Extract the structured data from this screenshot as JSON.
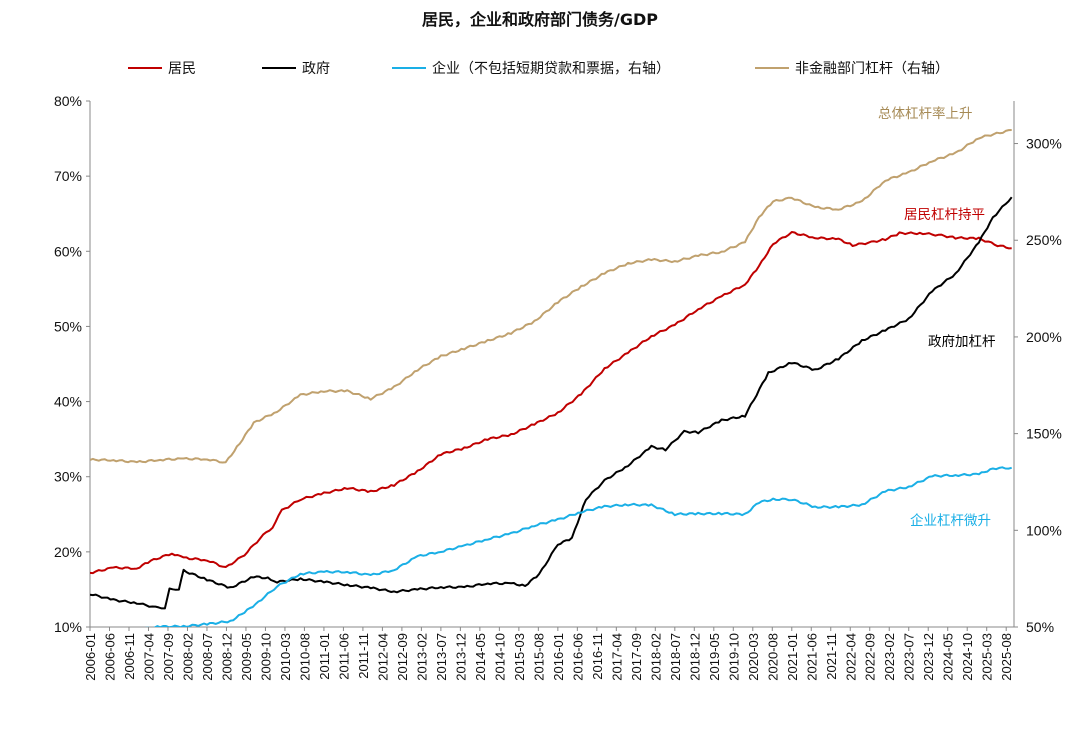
{
  "chart_data": {
    "type": "line",
    "title": "居民，企业和政府部门债务/GDP",
    "x_tick_labels": [
      "2006-01",
      "2006-06",
      "2006-11",
      "2007-04",
      "2007-09",
      "2008-02",
      "2008-07",
      "2008-12",
      "2009-05",
      "2009-10",
      "2010-03",
      "2010-08",
      "2011-01",
      "2011-06",
      "2011-11",
      "2012-04",
      "2012-09",
      "2013-02",
      "2013-07",
      "2013-12",
      "2014-05",
      "2014-10",
      "2015-03",
      "2015-08",
      "2016-01",
      "2016-06",
      "2016-11",
      "2017-04",
      "2017-09",
      "2018-02",
      "2018-07",
      "2018-12",
      "2019-05",
      "2019-10",
      "2020-03",
      "2020-08",
      "2021-01",
      "2021-06",
      "2021-11",
      "2022-04",
      "2022-09",
      "2023-02",
      "2023-07",
      "2023-12",
      "2024-05",
      "2024-10",
      "2025-03",
      "2025-08"
    ],
    "y_left": {
      "min": 10,
      "max": 80,
      "ticks": [
        "10%",
        "20%",
        "30%",
        "40%",
        "50%",
        "60%",
        "70%",
        "80%"
      ]
    },
    "y_right": {
      "min": 50,
      "max": 322,
      "ticks": [
        "50%",
        "100%",
        "150%",
        "200%",
        "250%",
        "300%"
      ]
    },
    "grid": false,
    "legend_position": "top",
    "series": [
      {
        "name": "居民",
        "axis": "left",
        "color": "#C00000",
        "points": [
          [
            2006.0,
            17.2
          ],
          [
            2006.5,
            17.9
          ],
          [
            2007.0,
            17.8
          ],
          [
            2007.3,
            18.8
          ],
          [
            2007.75,
            19.8
          ],
          [
            2008.0,
            19.2
          ],
          [
            2008.5,
            18.9
          ],
          [
            2008.9,
            17.9
          ],
          [
            2009.3,
            19.6
          ],
          [
            2009.7,
            22.2
          ],
          [
            2009.9,
            23.3
          ],
          [
            2010.1,
            25.5
          ],
          [
            2010.5,
            27.0
          ],
          [
            2011.0,
            27.8
          ],
          [
            2011.5,
            28.5
          ],
          [
            2012.0,
            28.0
          ],
          [
            2012.5,
            28.9
          ],
          [
            2013.0,
            30.7
          ],
          [
            2013.5,
            33.0
          ],
          [
            2014.0,
            33.8
          ],
          [
            2014.5,
            35.0
          ],
          [
            2015.0,
            35.6
          ],
          [
            2015.5,
            37.0
          ],
          [
            2016.0,
            38.5
          ],
          [
            2016.5,
            41.0
          ],
          [
            2017.0,
            44.4
          ],
          [
            2017.5,
            46.5
          ],
          [
            2018.0,
            48.7
          ],
          [
            2018.5,
            50.2
          ],
          [
            2019.0,
            52.3
          ],
          [
            2019.5,
            54.0
          ],
          [
            2020.0,
            55.6
          ],
          [
            2020.3,
            58.0
          ],
          [
            2020.6,
            61.0
          ],
          [
            2021.0,
            62.5
          ],
          [
            2021.5,
            61.8
          ],
          [
            2022.0,
            61.6
          ],
          [
            2022.3,
            60.8
          ],
          [
            2022.7,
            61.2
          ],
          [
            2023.0,
            61.6
          ],
          [
            2023.3,
            62.4
          ],
          [
            2023.8,
            62.4
          ],
          [
            2024.2,
            62.1
          ],
          [
            2024.5,
            61.8
          ],
          [
            2025.0,
            61.7
          ],
          [
            2025.4,
            60.8
          ],
          [
            2025.7,
            60.4
          ]
        ]
      },
      {
        "name": "政府",
        "axis": "left",
        "color": "#000000",
        "points": [
          [
            2006.0,
            14.4
          ],
          [
            2006.5,
            13.6
          ],
          [
            2007.0,
            13.2
          ],
          [
            2007.4,
            12.6
          ],
          [
            2007.6,
            12.6
          ],
          [
            2007.7,
            15.0
          ],
          [
            2007.9,
            15.1
          ],
          [
            2008.0,
            17.5
          ],
          [
            2008.5,
            16.3
          ],
          [
            2009.0,
            15.2
          ],
          [
            2009.5,
            16.7
          ],
          [
            2009.8,
            16.5
          ],
          [
            2010.0,
            16.0
          ],
          [
            2010.5,
            16.4
          ],
          [
            2011.0,
            16.0
          ],
          [
            2011.5,
            15.6
          ],
          [
            2012.0,
            15.2
          ],
          [
            2012.5,
            14.7
          ],
          [
            2013.0,
            15.0
          ],
          [
            2013.5,
            15.3
          ],
          [
            2014.0,
            15.3
          ],
          [
            2014.5,
            15.8
          ],
          [
            2015.0,
            15.8
          ],
          [
            2015.3,
            15.5
          ],
          [
            2015.6,
            17.0
          ],
          [
            2016.0,
            21.0
          ],
          [
            2016.3,
            21.8
          ],
          [
            2016.6,
            27.0
          ],
          [
            2017.0,
            29.5
          ],
          [
            2017.5,
            31.5
          ],
          [
            2018.0,
            34.0
          ],
          [
            2018.3,
            33.6
          ],
          [
            2018.7,
            36.0
          ],
          [
            2019.0,
            35.9
          ],
          [
            2019.5,
            37.5
          ],
          [
            2020.0,
            38.1
          ],
          [
            2020.5,
            43.8
          ],
          [
            2021.0,
            45.2
          ],
          [
            2021.5,
            44.2
          ],
          [
            2022.0,
            45.7
          ],
          [
            2022.5,
            48.1
          ],
          [
            2023.0,
            49.5
          ],
          [
            2023.5,
            51.0
          ],
          [
            2024.0,
            54.7
          ],
          [
            2024.5,
            57.0
          ],
          [
            2025.0,
            61.2
          ],
          [
            2025.3,
            64.5
          ],
          [
            2025.7,
            67.2
          ]
        ]
      },
      {
        "name": "企业（不包括短期贷款和票据，右轴）",
        "axis": "right",
        "color": "#1AAFE6",
        "points": [
          [
            2006.0,
            45.0
          ],
          [
            2007.0,
            48.5
          ],
          [
            2007.5,
            50.2
          ],
          [
            2008.0,
            50.3
          ],
          [
            2008.5,
            51.5
          ],
          [
            2009.0,
            53.0
          ],
          [
            2009.3,
            57.5
          ],
          [
            2009.6,
            63.0
          ],
          [
            2010.0,
            71.0
          ],
          [
            2010.5,
            77.5
          ],
          [
            2011.0,
            78.5
          ],
          [
            2011.5,
            78.5
          ],
          [
            2012.0,
            76.8
          ],
          [
            2012.5,
            79.5
          ],
          [
            2013.0,
            86.5
          ],
          [
            2013.5,
            89.0
          ],
          [
            2014.0,
            92.0
          ],
          [
            2014.5,
            95.5
          ],
          [
            2015.0,
            98.3
          ],
          [
            2015.5,
            102.5
          ],
          [
            2016.0,
            105.5
          ],
          [
            2016.5,
            109.5
          ],
          [
            2017.0,
            112.3
          ],
          [
            2017.5,
            113.3
          ],
          [
            2018.0,
            113.0
          ],
          [
            2018.5,
            108.3
          ],
          [
            2019.0,
            108.6
          ],
          [
            2019.5,
            108.7
          ],
          [
            2020.0,
            108.2
          ],
          [
            2020.3,
            114.5
          ],
          [
            2020.6,
            116.0
          ],
          [
            2021.0,
            116.0
          ],
          [
            2021.5,
            112.0
          ],
          [
            2022.0,
            112.1
          ],
          [
            2022.5,
            113.2
          ],
          [
            2023.0,
            120.2
          ],
          [
            2023.5,
            122.5
          ],
          [
            2024.0,
            128.0
          ],
          [
            2024.5,
            128.5
          ],
          [
            2025.0,
            129.0
          ],
          [
            2025.3,
            132.0
          ],
          [
            2025.7,
            132.3
          ]
        ]
      },
      {
        "name": "非金融部门杠杆（右轴）",
        "axis": "right",
        "color": "#C0A16E",
        "points": [
          [
            2006.0,
            136.5
          ],
          [
            2006.5,
            136.3
          ],
          [
            2007.0,
            135.2
          ],
          [
            2007.5,
            136.5
          ],
          [
            2008.0,
            137.0
          ],
          [
            2008.5,
            136.8
          ],
          [
            2008.9,
            135.0
          ],
          [
            2009.2,
            145.0
          ],
          [
            2009.5,
            155.5
          ],
          [
            2010.0,
            161.5
          ],
          [
            2010.5,
            170.0
          ],
          [
            2011.0,
            172.0
          ],
          [
            2011.5,
            172.0
          ],
          [
            2012.0,
            168.0
          ],
          [
            2012.5,
            174.0
          ],
          [
            2013.0,
            183.0
          ],
          [
            2013.5,
            190.0
          ],
          [
            2014.0,
            194.0
          ],
          [
            2014.5,
            198.0
          ],
          [
            2015.0,
            202.0
          ],
          [
            2015.5,
            208.0
          ],
          [
            2016.0,
            218.0
          ],
          [
            2016.5,
            226.0
          ],
          [
            2017.0,
            233.0
          ],
          [
            2017.5,
            238.0
          ],
          [
            2018.0,
            240.0
          ],
          [
            2018.5,
            239.0
          ],
          [
            2019.0,
            242.0
          ],
          [
            2019.5,
            244.0
          ],
          [
            2020.0,
            249.0
          ],
          [
            2020.3,
            262.0
          ],
          [
            2020.6,
            270.0
          ],
          [
            2021.0,
            272.0
          ],
          [
            2021.5,
            267.0
          ],
          [
            2022.0,
            266.0
          ],
          [
            2022.5,
            270.0
          ],
          [
            2023.0,
            281.0
          ],
          [
            2023.5,
            285.0
          ],
          [
            2024.0,
            291.0
          ],
          [
            2024.5,
            295.0
          ],
          [
            2025.0,
            303.0
          ],
          [
            2025.7,
            307.0
          ]
        ]
      }
    ],
    "annotations": [
      {
        "text": "总体杠杆率上升",
        "color": "#A68A55"
      },
      {
        "text": "居民杠杆持平",
        "color": "#C00000"
      },
      {
        "text": "政府加杠杆",
        "color": "#000000"
      },
      {
        "text": "企业杠杆微升",
        "color": "#1AAFE6"
      }
    ]
  }
}
